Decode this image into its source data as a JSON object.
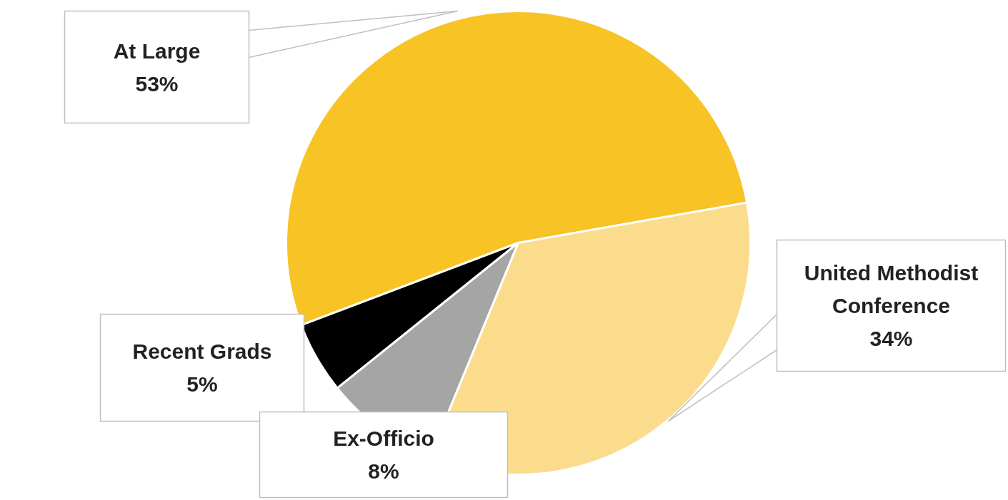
{
  "chart_data": {
    "type": "pie",
    "categories": [
      "At Large",
      "Recent Grads",
      "Ex-Officio",
      "United Methodist Conference"
    ],
    "values": [
      53,
      5,
      8,
      34
    ],
    "colors": [
      "#f7c325",
      "#000000",
      "#a5a5a5",
      "#fadc8c"
    ],
    "value_labels": [
      "53%",
      "5%",
      "8%",
      "34%"
    ]
  }
}
